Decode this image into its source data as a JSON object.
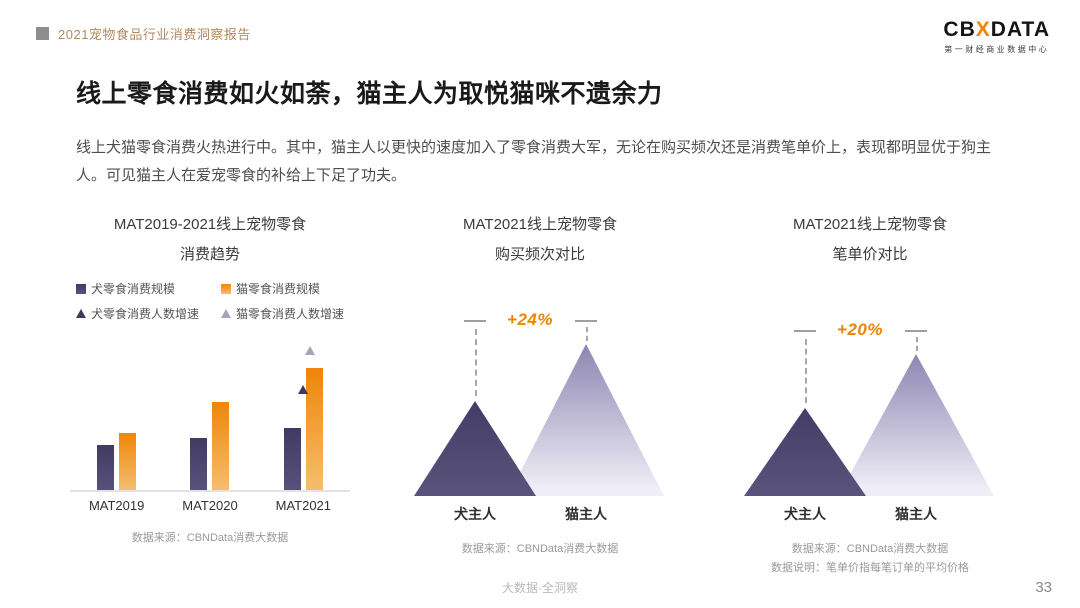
{
  "header": {
    "report_title": "2021宠物食品行业消费洞察报告",
    "logo": {
      "left": "CB",
      "mark": "X",
      "right": "DATA",
      "subtitle": "第一财经商业数据中心"
    }
  },
  "title": "线上零食消费如火如荼，猫主人为取悦猫咪不遗余力",
  "body": "线上犬猫零食消费火热进行中。其中，猫主人以更快的速度加入了零食消费大军，无论在购买频次还是消费笔单价上，表现都明显优于狗主人。可见猫主人在爱宠零食的补给上下足了功夫。",
  "colors": {
    "accent_orange": "#f08300",
    "navy": "#3e3a5e",
    "light_purple": "#8d85b2"
  },
  "chart_data": [
    {
      "type": "bar",
      "title_line1": "MAT2019-2021线上宠物零食",
      "title_line2": "消费趋势",
      "categories": [
        "MAT2019",
        "MAT2020",
        "MAT2021"
      ],
      "series": [
        {
          "name": "犬零食消费规模",
          "color": "#3e3a5e",
          "gradient": [
            "#413b64",
            "#57517c"
          ],
          "values": [
            45,
            52,
            62
          ]
        },
        {
          "name": "猫零食消费规模",
          "color": "#ee8608",
          "gradient": [
            "#ee8608",
            "#f6bd6e"
          ],
          "values": [
            57,
            88,
            122
          ]
        }
      ],
      "marker_series": [
        {
          "name": "犬零食消费人数增速",
          "color": "#3e3a5e",
          "marker": "triangle",
          "points": [
            {
              "category": "MAT2021",
              "height": 96
            }
          ]
        },
        {
          "name": "猫零食消费人数增速",
          "color": "#a9a3b8",
          "marker": "triangle",
          "points": [
            {
              "category": "MAT2021",
              "height": 135
            }
          ]
        }
      ],
      "source": "数据来源：CBNData消费大数据"
    },
    {
      "type": "peak-comparison",
      "title_line1": "MAT2021线上宠物零食",
      "title_line2": "购买频次对比",
      "items": [
        {
          "label": "犬主人",
          "relative_height": 95
        },
        {
          "label": "猫主人",
          "relative_height": 152
        }
      ],
      "delta_label": "+24%",
      "source": "数据来源：CBNData消费大数据"
    },
    {
      "type": "peak-comparison",
      "title_line1": "MAT2021线上宠物零食",
      "title_line2": "笔单价对比",
      "items": [
        {
          "label": "犬主人",
          "relative_height": 88
        },
        {
          "label": "猫主人",
          "relative_height": 142
        }
      ],
      "delta_label": "+20%",
      "source": "数据来源：CBNData消费大数据",
      "source_note": "数据说明：笔单价指每笔订单的平均价格"
    }
  ],
  "footer": {
    "tagline": "大数据·全洞察",
    "page_number": "33"
  }
}
